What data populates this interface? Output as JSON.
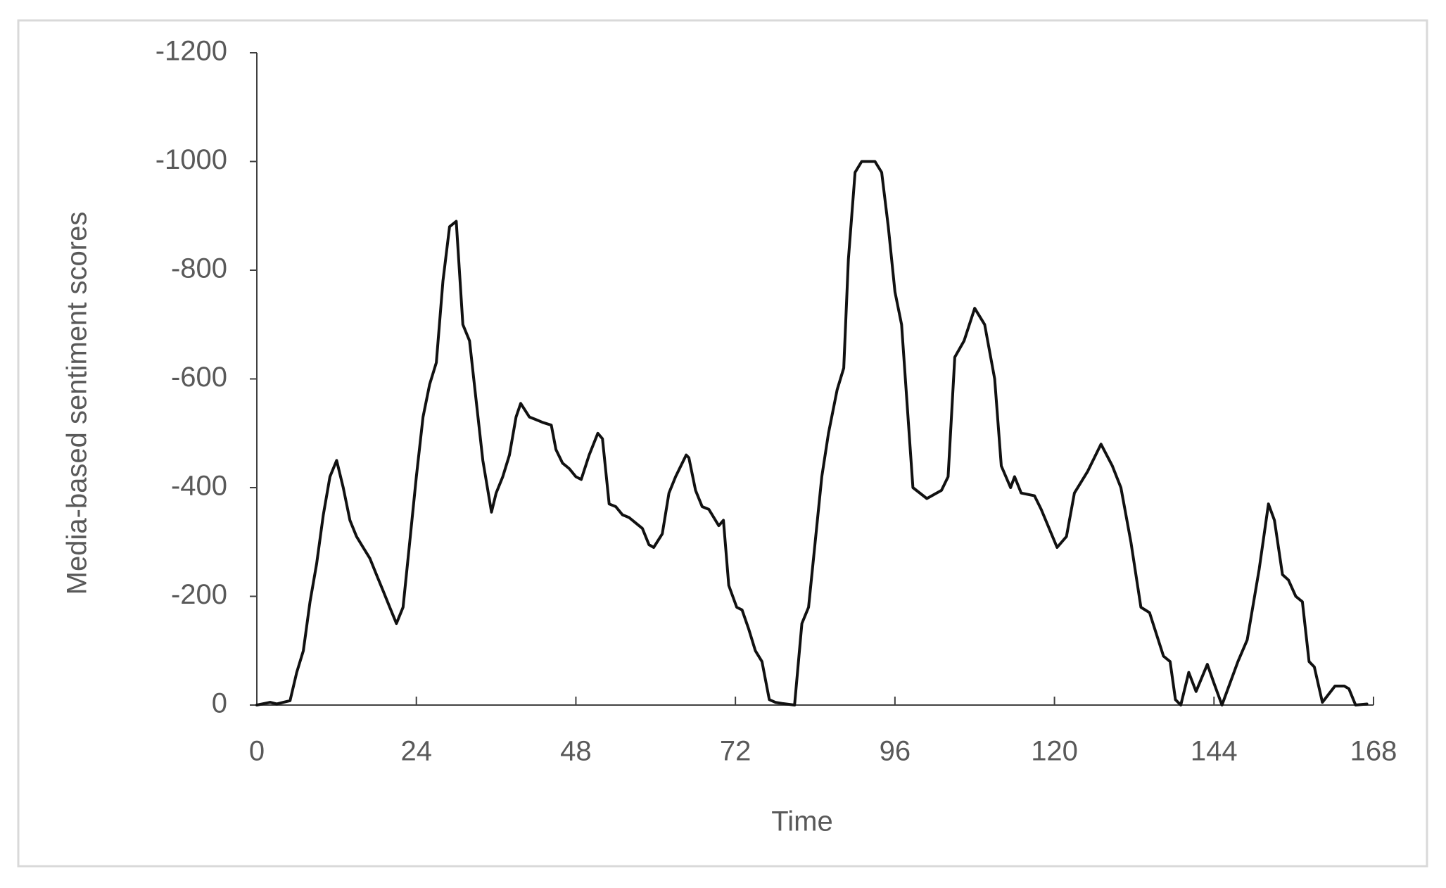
{
  "chart_data": {
    "type": "line",
    "xlabel": "Time",
    "ylabel": "Media-based sentiment scores",
    "x": [
      0,
      2,
      3,
      4,
      5,
      6,
      7,
      8,
      9,
      10,
      11,
      12,
      13,
      14,
      15,
      16,
      17,
      18,
      19,
      20,
      21,
      22,
      23,
      24,
      25,
      26,
      27,
      28,
      29,
      30,
      31,
      32,
      33,
      34,
      35.3,
      36,
      37,
      38,
      39,
      39.7,
      41,
      42,
      43,
      44.3,
      45,
      46,
      47,
      48,
      48.8,
      50,
      51.3,
      52,
      53,
      54,
      55,
      56,
      57,
      58,
      59,
      59.7,
      61,
      62,
      63,
      64.6,
      65,
      66,
      67,
      68,
      69,
      69.5,
      70.2,
      71,
      72.2,
      73,
      74,
      75,
      76,
      77.1,
      78,
      79,
      80.9,
      82,
      83,
      84,
      85,
      86,
      87.3,
      88.3,
      89,
      90,
      91,
      93,
      94,
      95,
      96,
      97,
      98.7,
      100.8,
      103,
      104,
      105,
      106.4,
      108,
      109.5,
      111,
      112,
      113.4,
      114,
      115,
      117,
      118,
      120.4,
      121.8,
      123,
      125,
      127,
      128.7,
      130,
      131.5,
      133,
      134.3,
      136.4,
      137.4,
      138.2,
      139,
      140.2,
      141.3,
      143,
      144,
      145.2,
      147.6,
      149,
      150.8,
      152.2,
      153.1,
      154.3,
      155.2,
      156.3,
      157.3,
      158.3,
      159.1,
      160.3,
      162.2,
      163.6,
      164.3,
      165.3,
      167
    ],
    "values": [
      0,
      -5,
      -2,
      -5,
      -8,
      -60,
      -100,
      -190,
      -260,
      -350,
      -420,
      -450,
      -400,
      -340,
      -310,
      -290,
      -270,
      -240,
      -210,
      -180,
      -150,
      -180,
      -300,
      -420,
      -530,
      -590,
      -630,
      -780,
      -880,
      -890,
      -700,
      -670,
      -560,
      -450,
      -355,
      -390,
      -420,
      -460,
      -530,
      -555,
      -530,
      -525,
      -520,
      -515,
      -470,
      -445,
      -435,
      -420,
      -415,
      -460,
      -500,
      -490,
      -370,
      -365,
      -350,
      -345,
      -335,
      -325,
      -295,
      -290,
      -315,
      -390,
      -420,
      -460,
      -455,
      -395,
      -365,
      -360,
      -340,
      -330,
      -340,
      -220,
      -180,
      -175,
      -140,
      -100,
      -80,
      -10,
      -5,
      -3,
      0,
      -150,
      -180,
      -300,
      -420,
      -500,
      -580,
      -620,
      -820,
      -980,
      -1000,
      -1000,
      -980,
      -880,
      -760,
      -700,
      -400,
      -380,
      -395,
      -420,
      -640,
      -670,
      -730,
      -700,
      -600,
      -440,
      -400,
      -420,
      -390,
      -385,
      -360,
      -290,
      -310,
      -390,
      -430,
      -480,
      -440,
      -400,
      -300,
      -180,
      -170,
      -90,
      -80,
      -10,
      0,
      -60,
      -25,
      -75,
      -40,
      0,
      -80,
      -120,
      -250,
      -370,
      -340,
      -240,
      -230,
      -200,
      -190,
      -80,
      -70,
      -5,
      -35,
      -35,
      -30,
      0,
      -2
    ],
    "color": "#111111",
    "xlim": [
      0,
      168
    ],
    "xticks": [
      0,
      24,
      48,
      72,
      96,
      120,
      144,
      168
    ],
    "ylim": [
      0,
      -1200
    ],
    "yticks": [
      0,
      -200,
      -400,
      -600,
      -800,
      -1000,
      -1200
    ]
  }
}
